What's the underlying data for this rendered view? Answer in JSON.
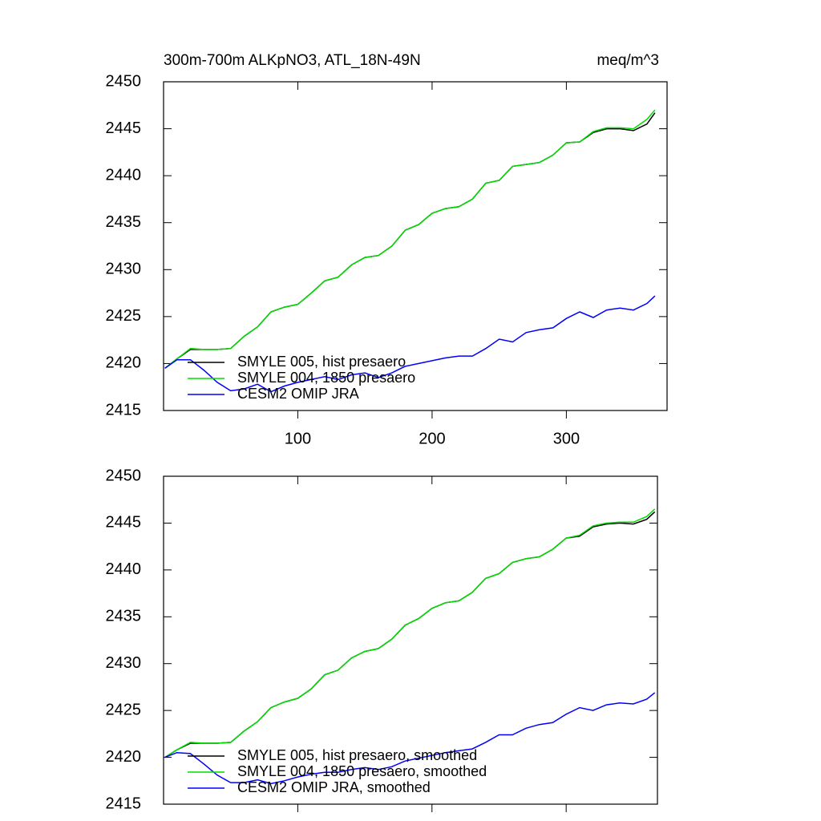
{
  "chart_data": [
    {
      "type": "line",
      "title": "300m-700m ALKpNO3, ATL_18N-49N",
      "units": "meq/m^3",
      "x": [
        1,
        10,
        20,
        30,
        40,
        50,
        60,
        70,
        80,
        90,
        100,
        110,
        120,
        130,
        140,
        150,
        160,
        170,
        180,
        190,
        200,
        210,
        220,
        230,
        240,
        250,
        260,
        270,
        280,
        290,
        300,
        310,
        320,
        330,
        340,
        350,
        360,
        366
      ],
      "series": [
        {
          "name": "SMYLE 005, hist presaero",
          "color": "#000000",
          "values": [
            2419.5,
            2420.5,
            2421.5,
            2421.5,
            2421.5,
            2421.6,
            2422.9,
            2423.9,
            2425.5,
            2426.0,
            2426.3,
            2427.5,
            2428.8,
            2429.2,
            2430.5,
            2431.3,
            2431.5,
            2432.5,
            2434.2,
            2434.8,
            2436.0,
            2436.5,
            2436.7,
            2437.5,
            2439.2,
            2439.5,
            2441.0,
            2441.2,
            2441.4,
            2442.2,
            2443.5,
            2443.6,
            2444.6,
            2445.0,
            2445.0,
            2444.8,
            2445.5,
            2446.7
          ]
        },
        {
          "name": "SMYLE 004, 1850 presaero",
          "color": "#00dd00",
          "values": [
            2419.5,
            2420.5,
            2421.6,
            2421.5,
            2421.5,
            2421.6,
            2422.9,
            2423.9,
            2425.5,
            2426.0,
            2426.3,
            2427.5,
            2428.8,
            2429.2,
            2430.5,
            2431.3,
            2431.5,
            2432.5,
            2434.2,
            2434.8,
            2436.0,
            2436.5,
            2436.7,
            2437.5,
            2439.2,
            2439.5,
            2441.0,
            2441.2,
            2441.4,
            2442.2,
            2443.5,
            2443.6,
            2444.7,
            2445.1,
            2445.1,
            2445.0,
            2446.0,
            2447.0
          ]
        },
        {
          "name": "CESM2 OMIP JRA",
          "color": "#0000ff",
          "values": [
            2419.5,
            2420.4,
            2420.4,
            2419.3,
            2418.0,
            2417.1,
            2417.3,
            2417.8,
            2417.0,
            2417.6,
            2418.0,
            2418.3,
            2418.6,
            2418.3,
            2418.8,
            2419.0,
            2418.5,
            2419.0,
            2419.7,
            2420.0,
            2420.3,
            2420.6,
            2420.8,
            2420.8,
            2421.6,
            2422.6,
            2422.3,
            2423.3,
            2423.6,
            2423.8,
            2424.8,
            2425.5,
            2424.9,
            2425.7,
            2425.9,
            2425.7,
            2426.4,
            2427.2
          ]
        }
      ],
      "xlim": [
        0,
        375
      ],
      "ylim": [
        2415,
        2450
      ],
      "xticks": [
        100,
        200,
        300
      ],
      "yticks": [
        2415,
        2420,
        2425,
        2430,
        2435,
        2440,
        2445,
        2450
      ],
      "legend": "lower left",
      "x_tick_labels": true
    },
    {
      "type": "line",
      "x": [
        1,
        10,
        20,
        30,
        40,
        50,
        60,
        70,
        80,
        90,
        100,
        110,
        120,
        130,
        140,
        150,
        160,
        170,
        180,
        190,
        200,
        210,
        220,
        230,
        240,
        250,
        260,
        270,
        280,
        290,
        300,
        310,
        320,
        330,
        340,
        350,
        360,
        366
      ],
      "series": [
        {
          "name": "SMYLE 005, hist presaero, smoothed",
          "color": "#000000",
          "values": [
            2420.0,
            2420.8,
            2421.5,
            2421.5,
            2421.5,
            2421.6,
            2422.8,
            2423.8,
            2425.3,
            2425.9,
            2426.3,
            2427.3,
            2428.8,
            2429.3,
            2430.6,
            2431.3,
            2431.6,
            2432.6,
            2434.1,
            2434.8,
            2435.9,
            2436.5,
            2436.7,
            2437.6,
            2439.1,
            2439.6,
            2440.8,
            2441.2,
            2441.4,
            2442.2,
            2443.4,
            2443.6,
            2444.6,
            2444.9,
            2445.0,
            2444.9,
            2445.4,
            2446.2
          ]
        },
        {
          "name": "SMYLE 004, 1850 presaero, smoothed",
          "color": "#00dd00",
          "values": [
            2420.0,
            2420.8,
            2421.6,
            2421.5,
            2421.5,
            2421.6,
            2422.8,
            2423.8,
            2425.3,
            2425.9,
            2426.3,
            2427.3,
            2428.8,
            2429.3,
            2430.6,
            2431.3,
            2431.6,
            2432.6,
            2434.1,
            2434.8,
            2435.9,
            2436.5,
            2436.7,
            2437.6,
            2439.1,
            2439.6,
            2440.8,
            2441.2,
            2441.4,
            2442.2,
            2443.4,
            2443.7,
            2444.7,
            2445.0,
            2445.1,
            2445.1,
            2445.7,
            2446.5
          ]
        },
        {
          "name": "CESM2 OMIP JRA, smoothed",
          "color": "#0000ff",
          "values": [
            2420.0,
            2420.5,
            2420.4,
            2419.3,
            2418.1,
            2417.3,
            2417.3,
            2417.6,
            2417.2,
            2417.5,
            2417.9,
            2418.2,
            2418.4,
            2418.4,
            2418.7,
            2418.9,
            2418.7,
            2419.0,
            2419.6,
            2419.9,
            2420.2,
            2420.5,
            2420.7,
            2420.9,
            2421.6,
            2422.4,
            2422.4,
            2423.1,
            2423.5,
            2423.7,
            2424.6,
            2425.3,
            2425.0,
            2425.6,
            2425.8,
            2425.7,
            2426.2,
            2426.9
          ]
        }
      ],
      "xlim": [
        0,
        368
      ],
      "ylim": [
        2415,
        2450
      ],
      "xticks": [
        100,
        200,
        300
      ],
      "yticks": [
        2415,
        2420,
        2425,
        2430,
        2435,
        2440,
        2445,
        2450
      ],
      "legend": "lower left",
      "x_tick_labels": false
    }
  ]
}
